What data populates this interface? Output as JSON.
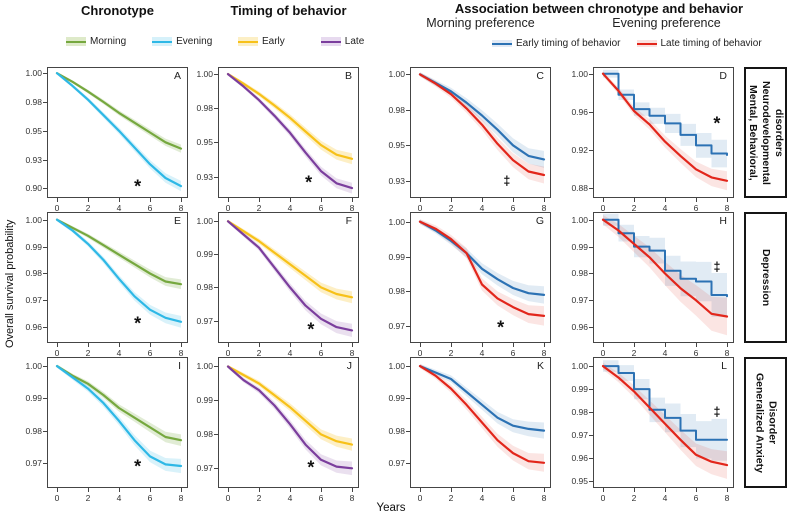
{
  "figure": {
    "col_headers": {
      "chronotype": "Chronotype",
      "timing": "Timing of behavior",
      "association": "Association between chronotype  and behavior"
    },
    "sub_headers": {
      "morning": "Morning preference",
      "evening": "Evening preference"
    },
    "xlabel": "Years",
    "ylabel": "Overall survival probability",
    "row_labels": {
      "r0": "Mental, Behavioral,\nNeurodevelopmental\ndisorders",
      "r1": "Depression",
      "r2": "Generalized Anxiety\nDisorder"
    }
  },
  "legends": {
    "chronotype": [
      {
        "label": "Morning",
        "color": "#76A83F",
        "band": "#DEEAC9"
      },
      {
        "label": "Evening",
        "color": "#2EB8E6",
        "band": "#D6F1FA"
      }
    ],
    "timing": [
      {
        "label": "Early",
        "color": "#F7C119",
        "band": "#FCEFC5"
      },
      {
        "label": "Late",
        "color": "#7B3E9D",
        "band": "#E7DAEF"
      }
    ],
    "association": [
      {
        "label": "Early timing of behavior",
        "color": "#2C72B4",
        "band": "#E2EAF5"
      },
      {
        "label": "Late timing of behavior",
        "color": "#E2261B",
        "band": "#FAE2E0"
      }
    ]
  },
  "chart_data": [
    {
      "id": "A",
      "type": "line",
      "row": "Mental, Behavioral, Neurodevelopmental disorders",
      "column": "Chronotype",
      "xmax": 8,
      "x": [
        0,
        1,
        2,
        3,
        4,
        5,
        6,
        7,
        8
      ],
      "xticks": [
        0,
        2,
        4,
        6,
        8
      ],
      "ylim": [
        0.8925,
        1.0045
      ],
      "yticks": {
        "values": [
          1.0,
          0.975,
          0.95,
          0.925,
          0.9
        ],
        "labels": [
          "1.00",
          "0.98",
          "0.95",
          "0.93",
          "0.90"
        ]
      },
      "series": [
        {
          "name": "Morning",
          "color": "#76A83F",
          "fill": "rgba(118,168,63,0.22)",
          "band": 0.0035,
          "step": false,
          "values": [
            1.0,
            0.9925,
            0.984,
            0.975,
            0.9655,
            0.957,
            0.9485,
            0.94,
            0.9345
          ]
        },
        {
          "name": "Evening",
          "color": "#2EB8E6",
          "fill": "rgba(46,184,230,0.18)",
          "band": 0.0045,
          "step": false,
          "values": [
            1.0,
            0.989,
            0.977,
            0.9635,
            0.95,
            0.9355,
            0.921,
            0.909,
            0.902
          ]
        }
      ],
      "annotations": [
        {
          "symbol": "*",
          "x": 5.2,
          "y": 0.9035
        }
      ]
    },
    {
      "id": "B",
      "type": "line",
      "row": "Mental, Behavioral, Neurodevelopmental disorders",
      "column": "Timing of behavior",
      "xmax": 8,
      "x": [
        0,
        1,
        2,
        3,
        4,
        5,
        6,
        7,
        8
      ],
      "xticks": [
        0,
        2,
        4,
        6,
        8
      ],
      "ylim": [
        0.91,
        1.0045
      ],
      "yticks": {
        "values": [
          1.0,
          0.975,
          0.95,
          0.925
        ],
        "labels": [
          "1.00",
          "0.98",
          "0.95",
          "0.93"
        ]
      },
      "series": [
        {
          "name": "Early",
          "color": "#F7C119",
          "fill": "rgba(247,193,25,0.25)",
          "band": 0.004,
          "step": false,
          "values": [
            1.0,
            0.993,
            0.9855,
            0.977,
            0.968,
            0.958,
            0.948,
            0.941,
            0.938
          ]
        },
        {
          "name": "Late",
          "color": "#7B3E9D",
          "fill": "rgba(123,62,157,0.16)",
          "band": 0.004,
          "step": false,
          "values": [
            1.0,
            0.991,
            0.981,
            0.9695,
            0.957,
            0.9425,
            0.929,
            0.92,
            0.9165
          ]
        }
      ],
      "annotations": [
        {
          "symbol": "*",
          "x": 5.2,
          "y": 0.9225
        }
      ]
    },
    {
      "id": "C",
      "type": "line",
      "row": "Mental, Behavioral, Neurodevelopmental disorders",
      "column": "Morning preference",
      "xmax": 8,
      "x": [
        0,
        1,
        2,
        3,
        4,
        5,
        6,
        7,
        8
      ],
      "xticks": [
        0,
        2,
        4,
        6,
        8
      ],
      "ylim": [
        0.9135,
        1.0045
      ],
      "yticks": {
        "values": [
          1.0,
          0.975,
          0.95,
          0.925
        ],
        "labels": [
          "1.00",
          "0.98",
          "0.95",
          "0.93"
        ]
      },
      "series": [
        {
          "name": "Early timing of behavior",
          "color": "#2C72B4",
          "fill": "rgba(44,114,180,0.14)",
          "band": 0.006,
          "step": false,
          "values": [
            1.0,
            0.994,
            0.988,
            0.98,
            0.971,
            0.961,
            0.95,
            0.9425,
            0.94
          ]
        },
        {
          "name": "Late timing of behavior",
          "color": "#E2261B",
          "fill": "rgba(226,38,27,0.12)",
          "band": 0.006,
          "step": false,
          "values": [
            1.0,
            0.9935,
            0.986,
            0.976,
            0.9645,
            0.951,
            0.9395,
            0.9315,
            0.929
          ]
        }
      ],
      "annotations": [
        {
          "symbol": "‡",
          "x": 5.6,
          "y": 0.9245
        }
      ]
    },
    {
      "id": "D",
      "type": "line",
      "row": "Mental, Behavioral, Neurodevelopmental disorders",
      "column": "Evening preference",
      "xmax": 8,
      "x": [
        0,
        1,
        2,
        3,
        4,
        5,
        6,
        7,
        8
      ],
      "xticks": [
        0,
        2,
        4,
        6,
        8
      ],
      "ylim": [
        0.871,
        1.006
      ],
      "yticks": {
        "values": [
          1.0,
          0.96,
          0.92,
          0.88
        ],
        "labels": [
          "1.00",
          "0.96",
          "0.92",
          "0.88"
        ]
      },
      "series": [
        {
          "name": "Early timing of behavior",
          "color": "#2C72B4",
          "fill": "rgba(44,114,180,0.14)",
          "band": 0.016,
          "step": true,
          "values": [
            1.0,
            0.978,
            0.963,
            0.956,
            0.948,
            0.936,
            0.925,
            0.9165,
            0.915
          ]
        },
        {
          "name": "Late timing of behavior",
          "color": "#E2261B",
          "fill": "rgba(226,38,27,0.12)",
          "band": 0.01,
          "step": false,
          "values": [
            1.0,
            0.982,
            0.961,
            0.947,
            0.929,
            0.914,
            0.9,
            0.8915,
            0.888
          ]
        }
      ],
      "annotations": [
        {
          "symbol": "*",
          "x": 7.35,
          "y": 0.951
        }
      ]
    },
    {
      "id": "E",
      "type": "line",
      "row": "Depression",
      "column": "Chronotype",
      "xmax": 8,
      "x": [
        0,
        1,
        2,
        3,
        4,
        5,
        6,
        7,
        8
      ],
      "xticks": [
        0,
        2,
        4,
        6,
        8
      ],
      "ylim": [
        0.9545,
        1.0025
      ],
      "yticks": {
        "values": [
          1.0,
          0.99,
          0.98,
          0.97,
          0.96
        ],
        "labels": [
          "1.00",
          "0.99",
          "0.98",
          "0.97",
          "0.96"
        ]
      },
      "series": [
        {
          "name": "Morning",
          "color": "#76A83F",
          "fill": "rgba(118,168,63,0.22)",
          "band": 0.0018,
          "step": false,
          "values": [
            1.0,
            0.997,
            0.994,
            0.9905,
            0.987,
            0.9835,
            0.98,
            0.977,
            0.976
          ]
        },
        {
          "name": "Evening",
          "color": "#2EB8E6",
          "fill": "rgba(46,184,230,0.18)",
          "band": 0.0022,
          "step": false,
          "values": [
            1.0,
            0.996,
            0.991,
            0.985,
            0.978,
            0.9715,
            0.9665,
            0.9635,
            0.962
          ]
        }
      ],
      "annotations": [
        {
          "symbol": "*",
          "x": 5.2,
          "y": 0.9625
        }
      ]
    },
    {
      "id": "F",
      "type": "line",
      "row": "Depression",
      "column": "Timing of behavior",
      "xmax": 8,
      "x": [
        0,
        1,
        2,
        3,
        4,
        5,
        6,
        7,
        8
      ],
      "xticks": [
        0,
        2,
        4,
        6,
        8
      ],
      "ylim": [
        0.9635,
        1.0025
      ],
      "yticks": {
        "values": [
          1.0,
          0.99,
          0.98,
          0.97
        ],
        "labels": [
          "1.00",
          "0.99",
          "0.98",
          "0.97"
        ]
      },
      "series": [
        {
          "name": "Early",
          "color": "#F7C119",
          "fill": "rgba(247,193,25,0.25)",
          "band": 0.0018,
          "step": false,
          "values": [
            1.0,
            0.997,
            0.994,
            0.9905,
            0.987,
            0.9835,
            0.98,
            0.978,
            0.977
          ]
        },
        {
          "name": "Late",
          "color": "#7B3E9D",
          "fill": "rgba(123,62,157,0.16)",
          "band": 0.002,
          "step": false,
          "values": [
            1.0,
            0.996,
            0.992,
            0.986,
            0.98,
            0.9745,
            0.9705,
            0.968,
            0.967
          ]
        }
      ],
      "annotations": [
        {
          "symbol": "*",
          "x": 5.35,
          "y": 0.968
        }
      ]
    },
    {
      "id": "G",
      "type": "line",
      "row": "Depression",
      "column": "Morning preference",
      "xmax": 8,
      "x": [
        0,
        1,
        2,
        3,
        4,
        5,
        6,
        7,
        8
      ],
      "xticks": [
        0,
        2,
        4,
        6,
        8
      ],
      "ylim": [
        0.9655,
        1.0025
      ],
      "yticks": {
        "values": [
          1.0,
          0.99,
          0.98,
          0.97
        ],
        "labels": [
          "1.00",
          "0.99",
          "0.98",
          "0.97"
        ]
      },
      "series": [
        {
          "name": "Early timing of behavior",
          "color": "#2C72B4",
          "fill": "rgba(44,114,180,0.14)",
          "band": 0.0025,
          "step": false,
          "values": [
            1.0,
            0.9975,
            0.9945,
            0.991,
            0.9865,
            0.9835,
            0.981,
            0.9795,
            0.979
          ]
        },
        {
          "name": "Late timing of behavior",
          "color": "#E2261B",
          "fill": "rgba(226,38,27,0.12)",
          "band": 0.0028,
          "step": false,
          "values": [
            1.0,
            0.998,
            0.995,
            0.991,
            0.982,
            0.978,
            0.9755,
            0.9735,
            0.973
          ]
        }
      ],
      "annotations": [
        {
          "symbol": "*",
          "x": 5.2,
          "y": 0.9705
        }
      ]
    },
    {
      "id": "H",
      "type": "line",
      "row": "Depression",
      "column": "Evening preference",
      "xmax": 8,
      "x": [
        0,
        1,
        2,
        3,
        4,
        5,
        6,
        7,
        8
      ],
      "xticks": [
        0,
        2,
        4,
        6,
        8
      ],
      "ylim": [
        0.9545,
        1.0025
      ],
      "yticks": {
        "values": [
          1.0,
          0.99,
          0.98,
          0.97,
          0.96
        ],
        "labels": [
          "1.00",
          "0.99",
          "0.98",
          "0.97",
          "0.96"
        ]
      },
      "series": [
        {
          "name": "Early timing of behavior",
          "color": "#2C72B4",
          "fill": "rgba(44,114,180,0.14)",
          "band": 0.009,
          "step": true,
          "values": [
            1.0,
            0.995,
            0.99,
            0.9885,
            0.981,
            0.978,
            0.977,
            0.972,
            0.9715
          ]
        },
        {
          "name": "Late timing of behavior",
          "color": "#E2261B",
          "fill": "rgba(226,38,27,0.12)",
          "band": 0.007,
          "step": false,
          "values": [
            1.0,
            0.996,
            0.991,
            0.986,
            0.98,
            0.9745,
            0.97,
            0.965,
            0.964
          ]
        }
      ],
      "annotations": [
        {
          "symbol": "‡",
          "x": 7.35,
          "y": 0.9825
        }
      ]
    },
    {
      "id": "I",
      "type": "line",
      "row": "Generalized Anxiety Disorder",
      "column": "Chronotype",
      "xmax": 8,
      "x": [
        0,
        1,
        2,
        3,
        4,
        5,
        6,
        7,
        8
      ],
      "xticks": [
        0,
        2,
        4,
        6,
        8
      ],
      "ylim": [
        0.9625,
        1.0025
      ],
      "yticks": {
        "values": [
          1.0,
          0.99,
          0.98,
          0.97
        ],
        "labels": [
          "1.00",
          "0.99",
          "0.98",
          "0.97"
        ]
      },
      "series": [
        {
          "name": "Morning",
          "color": "#76A83F",
          "fill": "rgba(118,168,63,0.22)",
          "band": 0.0018,
          "step": false,
          "values": [
            1.0,
            0.997,
            0.9945,
            0.991,
            0.987,
            0.984,
            0.981,
            0.978,
            0.977
          ]
        },
        {
          "name": "Evening",
          "color": "#2EB8E6",
          "fill": "rgba(46,184,230,0.18)",
          "band": 0.0022,
          "step": false,
          "values": [
            1.0,
            0.9965,
            0.993,
            0.9885,
            0.983,
            0.977,
            0.972,
            0.9695,
            0.969
          ]
        }
      ],
      "annotations": [
        {
          "symbol": "*",
          "x": 5.2,
          "y": 0.9695
        }
      ]
    },
    {
      "id": "J",
      "type": "line",
      "row": "Generalized Anxiety Disorder",
      "column": "Timing of behavior",
      "xmax": 8,
      "x": [
        0,
        1,
        2,
        3,
        4,
        5,
        6,
        7,
        8
      ],
      "xticks": [
        0,
        2,
        4,
        6,
        8
      ],
      "ylim": [
        0.9645,
        1.0025
      ],
      "yticks": {
        "values": [
          1.0,
          0.99,
          0.98,
          0.97
        ],
        "labels": [
          "1.00",
          "0.99",
          "0.98",
          "0.97"
        ]
      },
      "series": [
        {
          "name": "Early",
          "color": "#F7C119",
          "fill": "rgba(247,193,25,0.25)",
          "band": 0.0018,
          "step": false,
          "values": [
            1.0,
            0.9975,
            0.995,
            0.9915,
            0.988,
            0.984,
            0.98,
            0.978,
            0.977
          ]
        },
        {
          "name": "Late",
          "color": "#7B3E9D",
          "fill": "rgba(123,62,157,0.16)",
          "band": 0.002,
          "step": false,
          "values": [
            1.0,
            0.996,
            0.993,
            0.9885,
            0.983,
            0.977,
            0.9725,
            0.9705,
            0.97
          ]
        }
      ],
      "annotations": [
        {
          "symbol": "*",
          "x": 5.35,
          "y": 0.971
        }
      ]
    },
    {
      "id": "K",
      "type": "line",
      "row": "Generalized Anxiety Disorder",
      "column": "Morning preference",
      "xmax": 8,
      "x": [
        0,
        1,
        2,
        3,
        4,
        5,
        6,
        7,
        8
      ],
      "xticks": [
        0,
        2,
        4,
        6,
        8
      ],
      "ylim": [
        0.9625,
        1.0025
      ],
      "yticks": {
        "values": [
          1.0,
          0.99,
          0.98,
          0.97
        ],
        "labels": [
          "1.00",
          "0.99",
          "0.98",
          "0.97"
        ]
      },
      "series": [
        {
          "name": "Early timing of behavior",
          "color": "#2C72B4",
          "fill": "rgba(44,114,180,0.14)",
          "band": 0.0025,
          "step": false,
          "values": [
            1.0,
            0.998,
            0.996,
            0.992,
            0.988,
            0.984,
            0.9815,
            0.9805,
            0.98
          ]
        },
        {
          "name": "Late timing of behavior",
          "color": "#E2261B",
          "fill": "rgba(226,38,27,0.12)",
          "band": 0.0028,
          "step": false,
          "values": [
            1.0,
            0.997,
            0.993,
            0.988,
            0.9825,
            0.977,
            0.973,
            0.9705,
            0.97
          ]
        }
      ],
      "annotations": []
    },
    {
      "id": "L",
      "type": "line",
      "row": "Generalized Anxiety Disorder",
      "column": "Evening preference",
      "xmax": 8,
      "x": [
        0,
        1,
        2,
        3,
        4,
        5,
        6,
        7,
        8
      ],
      "xticks": [
        0,
        2,
        4,
        6,
        8
      ],
      "ylim": [
        0.9475,
        1.0035
      ],
      "yticks": {
        "values": [
          1.0,
          0.99,
          0.98,
          0.97,
          0.96,
          0.95
        ],
        "labels": [
          "1.00",
          "0.99",
          "0.98",
          "0.97",
          "0.96",
          "0.95"
        ]
      },
      "series": [
        {
          "name": "Early timing of behavior",
          "color": "#2C72B4",
          "fill": "rgba(44,114,180,0.14)",
          "band": 0.01,
          "step": true,
          "values": [
            1.0,
            0.997,
            0.99,
            0.981,
            0.9775,
            0.972,
            0.968,
            0.968,
            0.968
          ]
        },
        {
          "name": "Late timing of behavior",
          "color": "#E2261B",
          "fill": "rgba(226,38,27,0.12)",
          "band": 0.006,
          "step": false,
          "values": [
            1.0,
            0.995,
            0.989,
            0.982,
            0.975,
            0.968,
            0.9615,
            0.9585,
            0.957
          ]
        }
      ],
      "annotations": [
        {
          "symbol": "‡",
          "x": 7.35,
          "y": 0.98
        }
      ]
    }
  ]
}
